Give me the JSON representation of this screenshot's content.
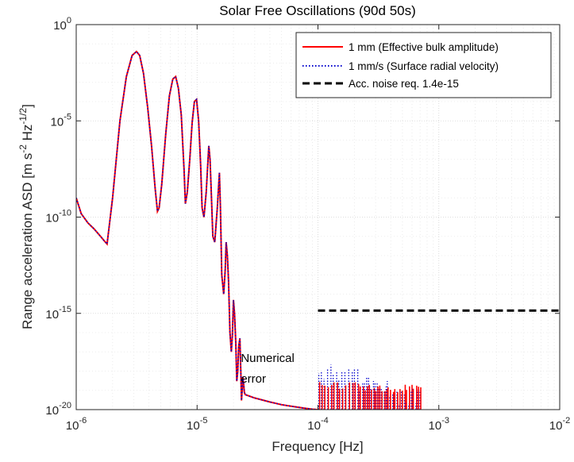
{
  "chart_data": {
    "type": "line",
    "title": "Solar Free Oscillations (90d 50s)",
    "xlabel": "Frequency [Hz]",
    "ylabel": {
      "main": "Range acceleration ASD [m s",
      "sup1": "-2",
      "mid": " Hz",
      "sup2": "-1/2",
      "end": "]"
    },
    "xscale": "log",
    "yscale": "log",
    "xlim": [
      1e-06,
      0.01
    ],
    "ylim": [
      1e-20,
      1
    ],
    "grid": true,
    "legend_position": "top-right",
    "x_ticks": [
      {
        "base": "10",
        "exp": "-6",
        "value": 1e-06
      },
      {
        "base": "10",
        "exp": "-5",
        "value": 1e-05
      },
      {
        "base": "10",
        "exp": "-4",
        "value": 0.0001
      },
      {
        "base": "10",
        "exp": "-3",
        "value": 0.001
      },
      {
        "base": "10",
        "exp": "-2",
        "value": 0.01
      }
    ],
    "y_ticks": [
      {
        "base": "10",
        "exp": "-20",
        "value": 1e-20
      },
      {
        "base": "10",
        "exp": "-15",
        "value": 1e-15
      },
      {
        "base": "10",
        "exp": "-10",
        "value": 1e-10
      },
      {
        "base": "10",
        "exp": "-5",
        "value": 1e-05
      },
      {
        "base": "10",
        "exp": "0",
        "value": 1
      }
    ],
    "series": [
      {
        "name": "1 mm (Effective bulk amplitude)",
        "color": "#ff0000",
        "style": "solid",
        "x": [
          1e-06,
          1.1e-06,
          1.25e-06,
          1.4e-06,
          1.55e-06,
          1.7e-06,
          1.8e-06,
          2e-06,
          2.3e-06,
          2.6e-06,
          2.9e-06,
          3.15e-06,
          3.35e-06,
          3.6e-06,
          3.9e-06,
          4.2e-06,
          4.5e-06,
          4.7e-06,
          4.85e-06,
          5.1e-06,
          5.5e-06,
          5.9e-06,
          6.3e-06,
          6.65e-06,
          7e-06,
          7.4e-06,
          7.8e-06,
          8e-06,
          8.3e-06,
          8.7e-06,
          9.1e-06,
          9.5e-06,
          9.9e-06,
          1.03e-05,
          1.07e-05,
          1.1e-05,
          1.14e-05,
          1.19e-05,
          1.25e-05,
          1.28e-05,
          1.31e-05,
          1.35e-05,
          1.4e-05,
          1.47e-05,
          1.53e-05,
          1.56e-05,
          1.6e-05,
          1.66e-05,
          1.71e-05,
          1.74e-05,
          1.78e-05,
          1.82e-05,
          1.87e-05,
          1.92e-05,
          1.96e-05,
          2e-05,
          2.04e-05,
          2.09e-05,
          2.13e-05,
          2.17e-05,
          2.21e-05,
          2.26e-05,
          2.3e-05,
          2.33e-05,
          2.36e-05,
          2.39e-05,
          2.43e-05,
          2.46e-05,
          2.5e-05,
          3e-05,
          4e-05,
          5e-05,
          6e-05,
          7e-05,
          8e-05,
          9e-05,
          0.0001
        ],
        "y": [
          1e-09,
          1.5e-10,
          5e-11,
          2.5e-11,
          1.2e-11,
          6e-12,
          4e-12,
          1e-09,
          1e-05,
          0.002,
          0.025,
          0.04,
          0.025,
          0.003,
          5e-05,
          5e-07,
          3e-09,
          2e-10,
          3e-10,
          5e-09,
          2e-06,
          0.0002,
          0.0015,
          0.002,
          0.0005,
          2e-05,
          3e-08,
          5e-10,
          2e-09,
          1e-07,
          8e-06,
          0.0001,
          0.00013,
          1e-05,
          5e-08,
          3e-10,
          1e-10,
          2e-09,
          5e-07,
          1e-07,
          2e-09,
          1e-11,
          5e-12,
          3e-10,
          2e-08,
          3e-10,
          1e-13,
          1e-14,
          2e-13,
          5e-12,
          1e-12,
          5e-14,
          1e-16,
          1e-17,
          8e-17,
          5e-15,
          1e-15,
          3e-17,
          3e-19,
          1e-18,
          2e-17,
          5e-17,
          1e-18,
          3e-20,
          1e-19,
          5e-19,
          2e-19,
          8e-20,
          6e-20,
          4e-20,
          2.5e-20,
          1.8e-20,
          1.5e-20,
          1.3e-20,
          1.15e-20,
          1.05e-20,
          1e-20
        ]
      },
      {
        "name": "1 mm/s (Surface radial velocity)",
        "color": "#0000cc",
        "style": "dotted"
      },
      {
        "name": "Acc. noise req. 1.4e-15",
        "color": "#000000",
        "style": "dashed",
        "x": [
          0.0001,
          0.01
        ],
        "y": [
          1.4e-15,
          1.4e-15
        ]
      }
    ],
    "spike_bands": [
      {
        "x_start": 0.0001,
        "x_end": 0.00022,
        "peak_blue": 2.5e-18,
        "peak_red": 3e-19
      },
      {
        "x_start": 0.00022,
        "x_end": 0.00039,
        "peak_blue": 6e-19,
        "peak_red": 2e-19
      },
      {
        "x_start": 0.00039,
        "x_end": 0.00072,
        "peak_blue": 1.2e-19,
        "peak_red": 2e-19
      }
    ],
    "annotations": [
      {
        "text": "Numerical",
        "x": 2.3e-05,
        "y": 3e-18
      },
      {
        "text": "error",
        "x": 2.3e-05,
        "y": 2.5e-19
      }
    ]
  }
}
